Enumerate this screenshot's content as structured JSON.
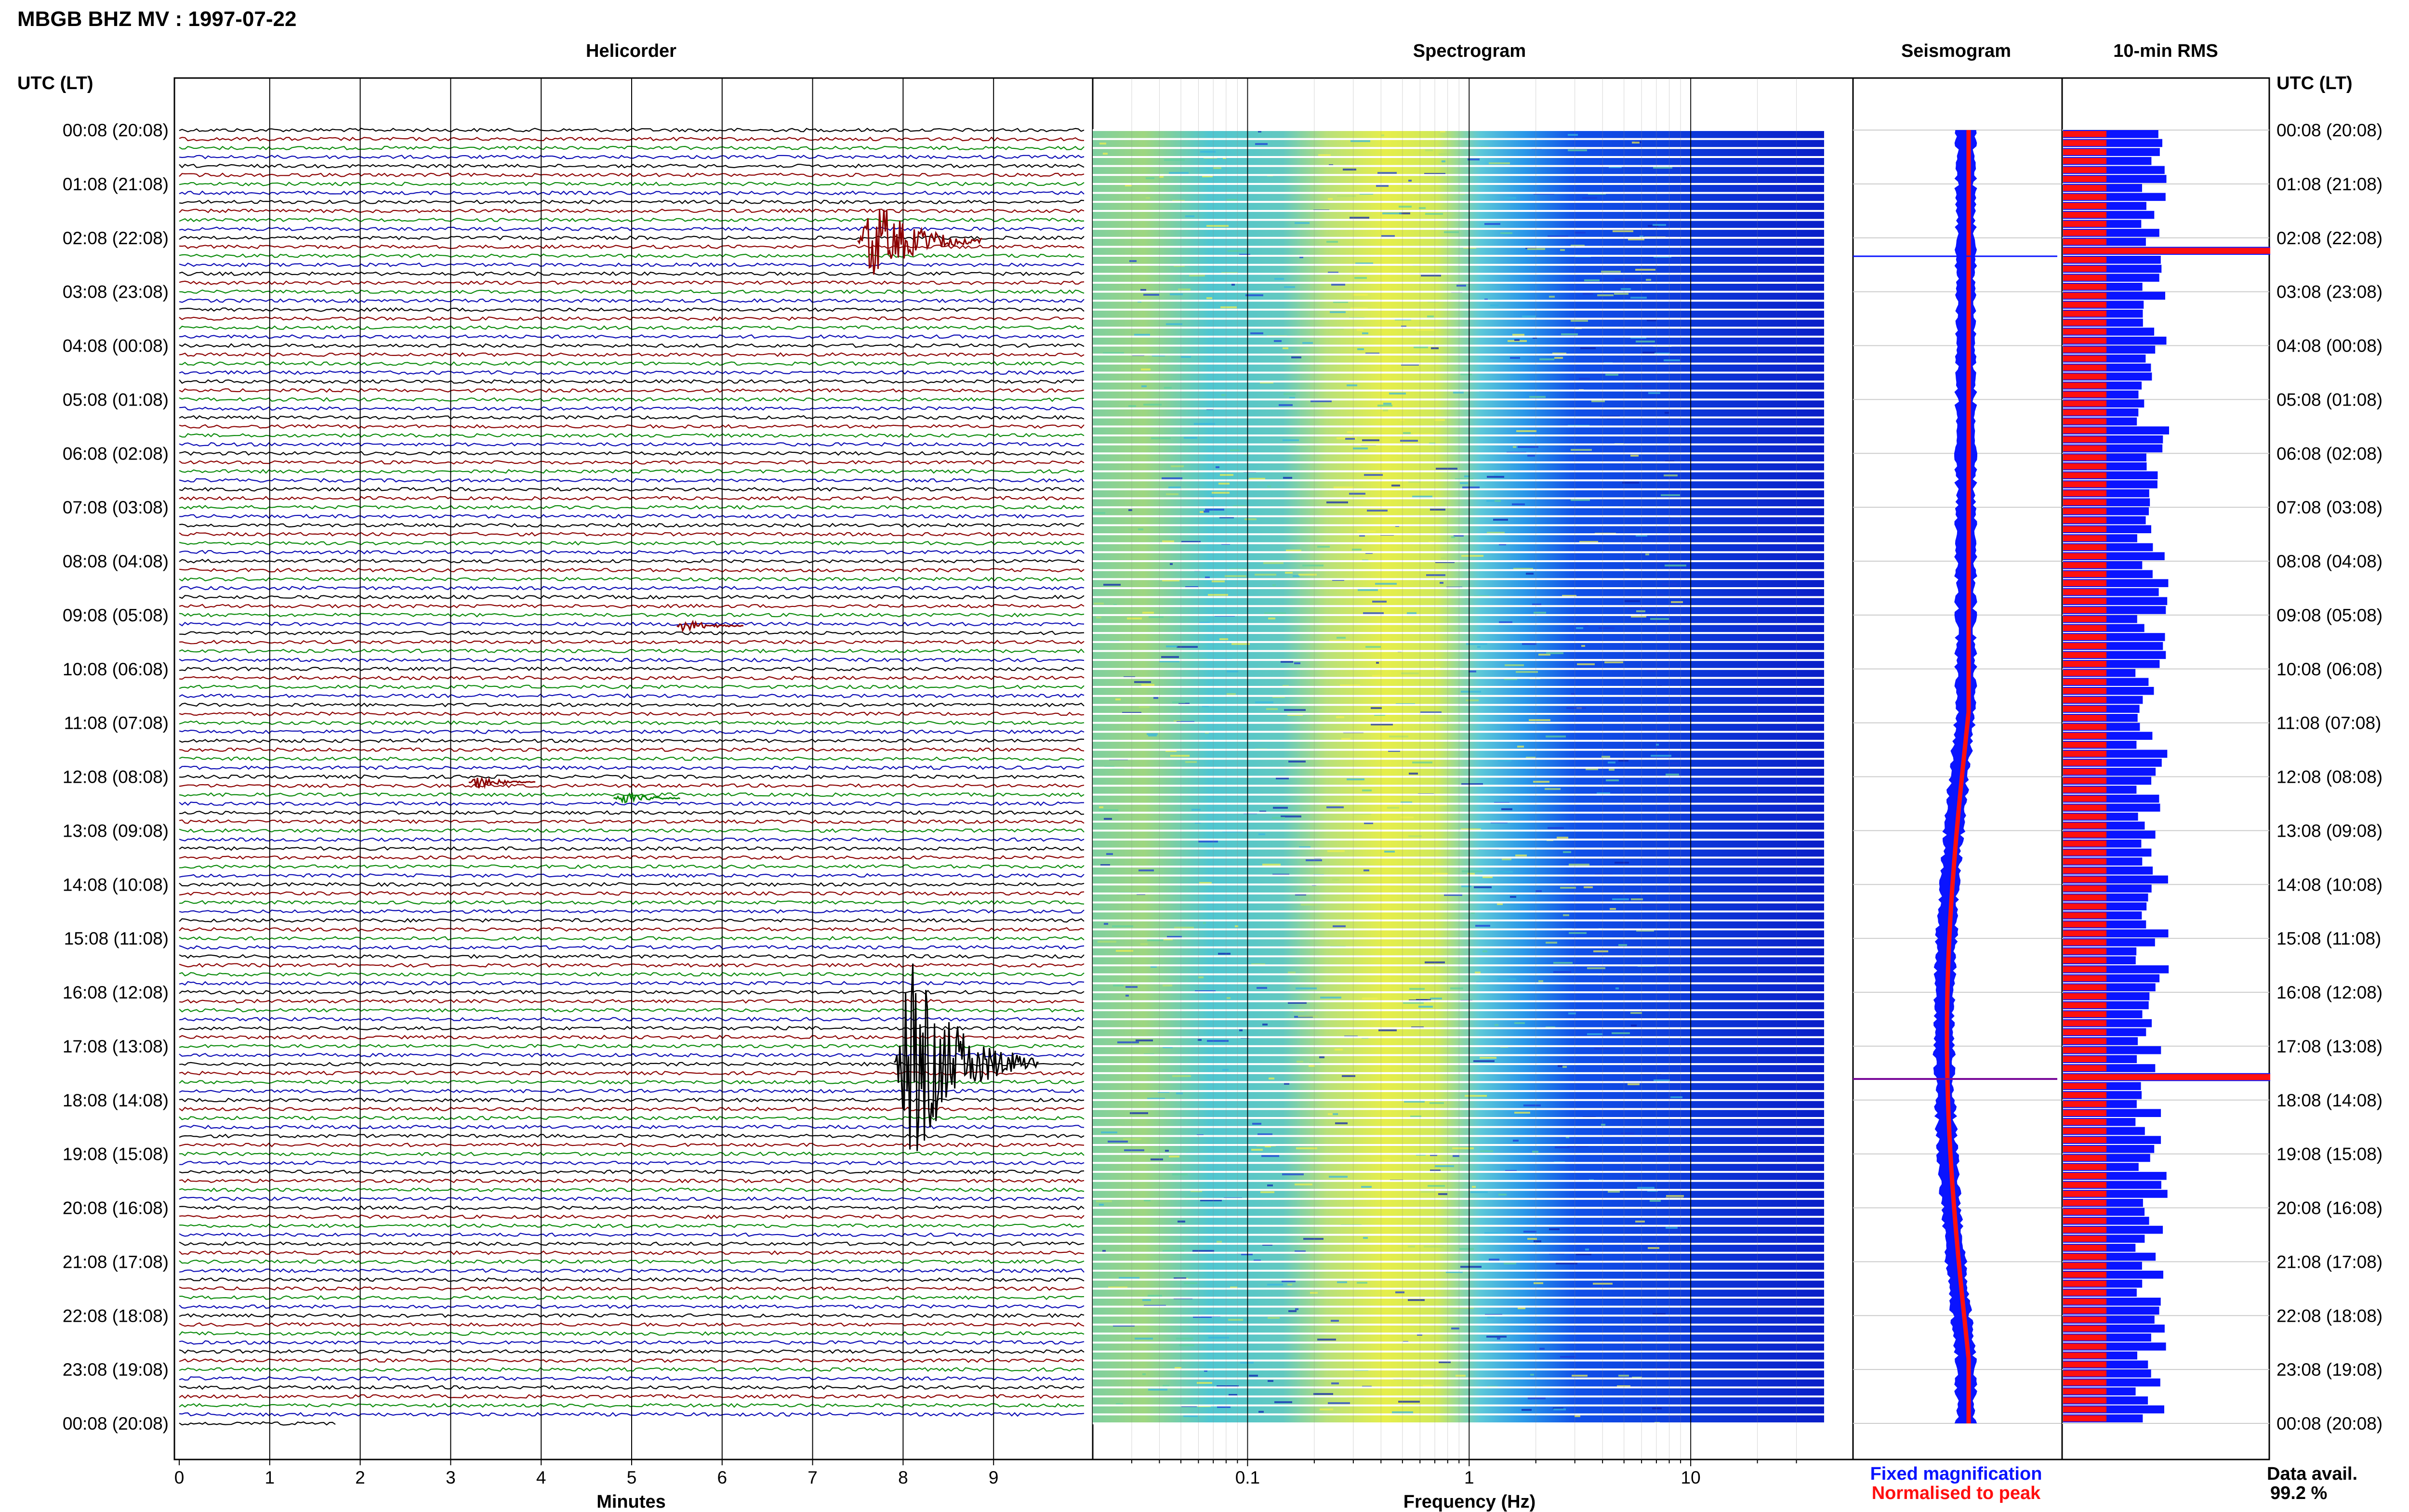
{
  "title": "MBGB BHZ MV : 1997-07-22",
  "panels": {
    "helicorder": "Helicorder",
    "spectrogram": "Spectrogram",
    "seismogram": "Seismogram",
    "rms": "10-min RMS"
  },
  "left_axis_header": "UTC (LT)",
  "right_axis_header": "UTC (LT)",
  "time_labels": [
    "00:08 (20:08)",
    "01:08 (21:08)",
    "02:08 (22:08)",
    "03:08 (23:08)",
    "04:08 (00:08)",
    "05:08 (01:08)",
    "06:08 (02:08)",
    "07:08 (03:08)",
    "08:08 (04:08)",
    "09:08 (05:08)",
    "10:08 (06:08)",
    "11:08 (07:08)",
    "12:08 (08:08)",
    "13:08 (09:08)",
    "14:08 (10:08)",
    "15:08 (11:08)",
    "16:08 (12:08)",
    "17:08 (13:08)",
    "18:08 (14:08)",
    "19:08 (15:08)",
    "20:08 (16:08)",
    "21:08 (17:08)",
    "22:08 (18:08)",
    "23:08 (19:08)",
    "00:08 (20:08)"
  ],
  "x_axes": {
    "minutes": {
      "label": "Minutes",
      "ticks": [
        "0",
        "1",
        "2",
        "3",
        "4",
        "5",
        "6",
        "7",
        "8",
        "9"
      ]
    },
    "frequency": {
      "label": "Frequency (Hz)",
      "ticks": [
        "0.1",
        "1",
        "10"
      ]
    }
  },
  "legend": {
    "fixed": "Fixed magnification",
    "normalised": "Normalised to peak",
    "fixed_color": "#0a14ff",
    "normalised_color": "#ff1010"
  },
  "data_avail": {
    "label": "Data avail.",
    "value": "99.2 %"
  },
  "trace_colors": [
    "#000000",
    "#8b0000",
    "#0a8a0a",
    "#0a0ab4"
  ],
  "chart_data": {
    "type": "heatmap",
    "helicorder": {
      "minutes_range": [
        0,
        10
      ],
      "hours": 24,
      "lines_per_hour": 6,
      "events": [
        {
          "hour": 2.05,
          "minute": 7.5,
          "amplitude": "large",
          "color": "#8b0000"
        },
        {
          "hour": 17.3,
          "minute": 7.9,
          "amplitude": "very large",
          "color": "#000000"
        },
        {
          "hour": 12.1,
          "minute": 3.2,
          "amplitude": "moderate",
          "color": "#8b0000"
        },
        {
          "hour": 12.4,
          "minute": 4.8,
          "amplitude": "moderate",
          "color": "#0a8a0a"
        },
        {
          "hour": 9.2,
          "minute": 5.5,
          "amplitude": "moderate",
          "color": "#8b0000"
        }
      ]
    },
    "spectrogram": {
      "freq_range_hz": [
        0.02,
        40
      ],
      "scale": "log",
      "peak_band_hz": [
        0.2,
        0.6
      ]
    },
    "rms": {
      "spikes": [
        {
          "hour": 2.2
        },
        {
          "hour": 17.5
        }
      ]
    }
  }
}
